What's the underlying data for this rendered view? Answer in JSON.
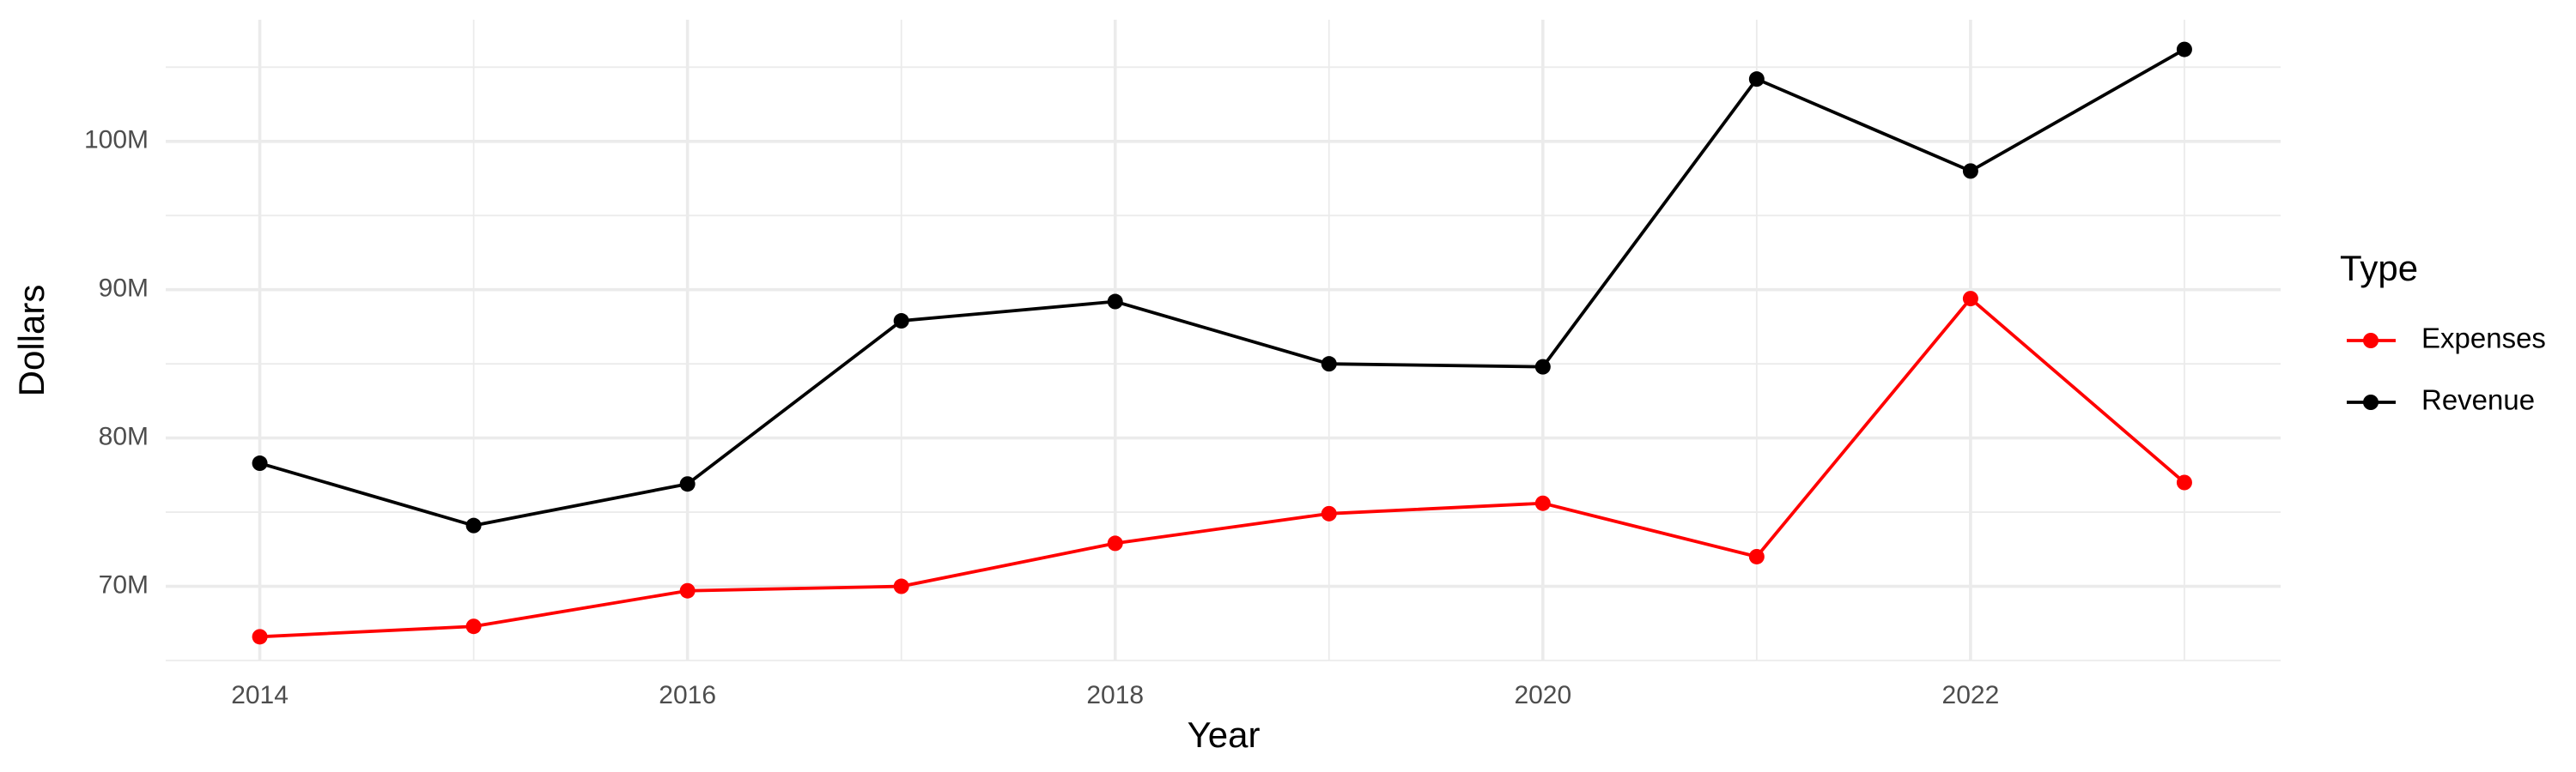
{
  "chart_data": {
    "type": "line",
    "x_label": "Year",
    "y_label": "Dollars",
    "legend_title": "Type",
    "legend_position": "right",
    "x": [
      2014,
      2015,
      2016,
      2017,
      2018,
      2019,
      2020,
      2021,
      2022,
      2023
    ],
    "series": [
      {
        "name": "Expenses",
        "color": "#ff0000",
        "values": [
          66600000,
          67300000,
          69700000,
          70000000,
          72900000,
          74900000,
          75600000,
          72000000,
          89400000,
          77000000
        ]
      },
      {
        "name": "Revenue",
        "color": "#000000",
        "values": [
          78300000,
          74100000,
          76900000,
          87900000,
          89200000,
          85000000,
          84800000,
          104200000,
          98000000,
          106200000
        ]
      }
    ],
    "xlim": [
      2013.56,
      2023.45
    ],
    "xticks": [
      2014,
      2016,
      2018,
      2020,
      2022
    ],
    "x_minor_ticks": [
      2015,
      2017,
      2019,
      2021,
      2023
    ],
    "ylim": [
      65000000,
      108200000
    ],
    "yticks": [
      {
        "value": 70000000,
        "label": "70M"
      },
      {
        "value": 80000000,
        "label": "80M"
      },
      {
        "value": 90000000,
        "label": "90M"
      },
      {
        "value": 100000000,
        "label": "100M"
      }
    ],
    "y_minor_ticks": [
      65000000,
      75000000,
      85000000,
      95000000,
      105000000
    ],
    "grid": true
  }
}
